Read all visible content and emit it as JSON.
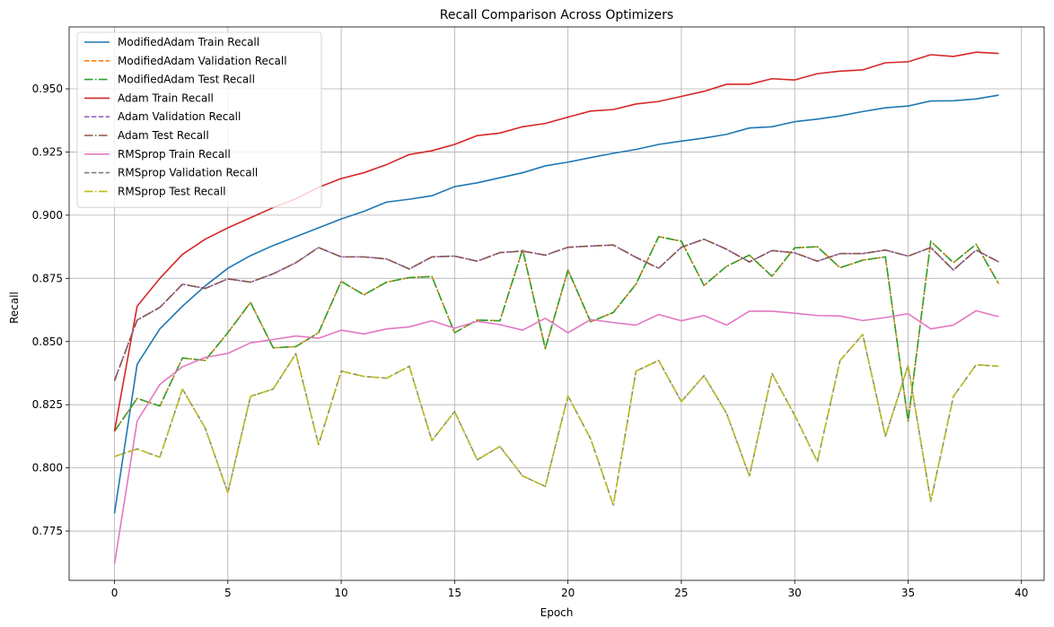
{
  "chart_data": {
    "type": "line",
    "title": "Recall Comparison Across Optimizers",
    "xlabel": "Epoch",
    "ylabel": "Recall",
    "xlim": [
      -2,
      41
    ],
    "ylim": [
      0.7555,
      0.9745
    ],
    "xticks": [
      0,
      5,
      10,
      15,
      20,
      25,
      30,
      35,
      40
    ],
    "yticks": [
      0.775,
      0.8,
      0.825,
      0.85,
      0.875,
      0.9,
      0.925,
      0.95
    ],
    "ytick_labels": [
      "0.775",
      "0.800",
      "0.825",
      "0.850",
      "0.875",
      "0.900",
      "0.925",
      "0.950"
    ],
    "grid": true,
    "legend_position": "top-left",
    "x": [
      0,
      1,
      2,
      3,
      4,
      5,
      6,
      7,
      8,
      9,
      10,
      11,
      12,
      13,
      14,
      15,
      16,
      17,
      18,
      19,
      20,
      21,
      22,
      23,
      24,
      25,
      26,
      27,
      28,
      29,
      30,
      31,
      32,
      33,
      34,
      35,
      36,
      37,
      38,
      39
    ],
    "series": [
      {
        "name": "ModifiedAdam Train Recall",
        "color": "#1f77b4",
        "dash": "solid",
        "values": [
          0.782,
          0.841,
          0.855,
          0.864,
          0.872,
          0.879,
          0.884,
          0.888,
          0.8915,
          0.895,
          0.8985,
          0.9015,
          0.9052,
          0.9063,
          0.9077,
          0.9113,
          0.9128,
          0.9148,
          0.9168,
          0.9195,
          0.921,
          0.9228,
          0.9245,
          0.926,
          0.928,
          0.9293,
          0.9305,
          0.932,
          0.9345,
          0.935,
          0.937,
          0.938,
          0.9393,
          0.941,
          0.9425,
          0.9432,
          0.9452,
          0.9453,
          0.946,
          0.9475
        ]
      },
      {
        "name": "ModifiedAdam Validation Recall",
        "color": "#ff7f0e",
        "dash": "dashed",
        "values": [
          0.8145,
          0.8275,
          0.8245,
          0.8435,
          0.8425,
          0.8535,
          0.8655,
          0.8475,
          0.848,
          0.8535,
          0.8738,
          0.8685,
          0.8735,
          0.8753,
          0.8757,
          0.8535,
          0.8585,
          0.8582,
          0.8865,
          0.8472,
          0.8783,
          0.8578,
          0.8615,
          0.8727,
          0.8915,
          0.8897,
          0.8722,
          0.8798,
          0.8842,
          0.8758,
          0.8871,
          0.8875,
          0.8792,
          0.8822,
          0.8835,
          0.8185,
          0.8897,
          0.8812,
          0.8885,
          0.8728
        ]
      },
      {
        "name": "ModifiedAdam Test Recall",
        "color": "#2ca02c",
        "dash": "dashdot",
        "values": [
          0.8145,
          0.8275,
          0.8245,
          0.8435,
          0.8425,
          0.8535,
          0.8655,
          0.8475,
          0.848,
          0.8535,
          0.8738,
          0.8685,
          0.8735,
          0.8753,
          0.8757,
          0.8535,
          0.8585,
          0.8582,
          0.8865,
          0.8472,
          0.8783,
          0.8578,
          0.8615,
          0.8727,
          0.8915,
          0.8897,
          0.8722,
          0.8798,
          0.8842,
          0.8758,
          0.8871,
          0.8875,
          0.8792,
          0.8822,
          0.8835,
          0.8185,
          0.8897,
          0.8812,
          0.8885,
          0.8728
        ]
      },
      {
        "name": "Adam Train Recall",
        "color": "#d62728",
        "dash": "solid",
        "values": [
          0.8145,
          0.864,
          0.875,
          0.8845,
          0.8905,
          0.895,
          0.899,
          0.903,
          0.9065,
          0.911,
          0.9145,
          0.9168,
          0.92,
          0.924,
          0.9255,
          0.928,
          0.9315,
          0.9325,
          0.935,
          0.9363,
          0.9388,
          0.9412,
          0.9418,
          0.944,
          0.945,
          0.947,
          0.949,
          0.9518,
          0.9518,
          0.954,
          0.9535,
          0.956,
          0.957,
          0.9575,
          0.9603,
          0.9607,
          0.9635,
          0.9628,
          0.9645,
          0.964
        ]
      },
      {
        "name": "Adam Validation Recall",
        "color": "#9467bd",
        "dash": "dashed",
        "values": [
          0.8345,
          0.8585,
          0.8635,
          0.8727,
          0.871,
          0.8748,
          0.8735,
          0.8768,
          0.8812,
          0.8872,
          0.8835,
          0.8835,
          0.8827,
          0.8787,
          0.8835,
          0.8838,
          0.8818,
          0.8852,
          0.8858,
          0.8842,
          0.8873,
          0.8878,
          0.8882,
          0.8833,
          0.879,
          0.8873,
          0.8905,
          0.8865,
          0.8815,
          0.886,
          0.8851,
          0.8818,
          0.8848,
          0.8848,
          0.8862,
          0.8838,
          0.8872,
          0.8783,
          0.8862,
          0.8815
        ]
      },
      {
        "name": "Adam Test Recall",
        "color": "#8c564b",
        "dash": "dashdot",
        "values": [
          0.8345,
          0.8585,
          0.8635,
          0.8727,
          0.871,
          0.8748,
          0.8735,
          0.8768,
          0.8812,
          0.8872,
          0.8835,
          0.8835,
          0.8827,
          0.8787,
          0.8835,
          0.8838,
          0.8818,
          0.8852,
          0.8858,
          0.8842,
          0.8873,
          0.8878,
          0.8882,
          0.8833,
          0.879,
          0.8873,
          0.8905,
          0.8865,
          0.8815,
          0.886,
          0.8851,
          0.8818,
          0.8848,
          0.8848,
          0.8862,
          0.8838,
          0.8872,
          0.8783,
          0.8862,
          0.8815
        ]
      },
      {
        "name": "RMSprop Train Recall",
        "color": "#e377c2",
        "dash": "solid",
        "values": [
          0.762,
          0.8185,
          0.833,
          0.84,
          0.8437,
          0.8453,
          0.8495,
          0.8508,
          0.8522,
          0.8513,
          0.8545,
          0.853,
          0.855,
          0.8558,
          0.8582,
          0.8553,
          0.858,
          0.8567,
          0.8545,
          0.8592,
          0.8535,
          0.8587,
          0.8575,
          0.8565,
          0.8607,
          0.8582,
          0.8603,
          0.8565,
          0.862,
          0.862,
          0.8612,
          0.8603,
          0.8601,
          0.8583,
          0.8595,
          0.861,
          0.855,
          0.8565,
          0.8622,
          0.8598
        ]
      },
      {
        "name": "RMSprop Validation Recall",
        "color": "#7f7f7f",
        "dash": "dashed",
        "values": [
          0.8045,
          0.8075,
          0.8042,
          0.8312,
          0.8158,
          0.7902,
          0.8283,
          0.8312,
          0.8452,
          0.8092,
          0.8383,
          0.8362,
          0.8355,
          0.8402,
          0.8108,
          0.8223,
          0.8032,
          0.8085,
          0.7968,
          0.7927,
          0.8285,
          0.8115,
          0.7853,
          0.8383,
          0.8425,
          0.8262,
          0.8365,
          0.8215,
          0.7968,
          0.8373,
          0.8208,
          0.8025,
          0.8425,
          0.8528,
          0.8125,
          0.8405,
          0.7868,
          0.8283,
          0.8408,
          0.8402
        ]
      },
      {
        "name": "RMSprop Test Recall",
        "color": "#bcbd22",
        "dash": "dashdot",
        "values": [
          0.8045,
          0.8075,
          0.8042,
          0.8312,
          0.8158,
          0.7902,
          0.8283,
          0.8312,
          0.8452,
          0.8092,
          0.8383,
          0.8362,
          0.8355,
          0.8402,
          0.8108,
          0.8223,
          0.8032,
          0.8085,
          0.7968,
          0.7927,
          0.8285,
          0.8115,
          0.7853,
          0.8383,
          0.8425,
          0.8262,
          0.8365,
          0.8215,
          0.7968,
          0.8373,
          0.8208,
          0.8025,
          0.8425,
          0.8528,
          0.8125,
          0.8405,
          0.7868,
          0.8283,
          0.8408,
          0.8402
        ]
      }
    ]
  }
}
